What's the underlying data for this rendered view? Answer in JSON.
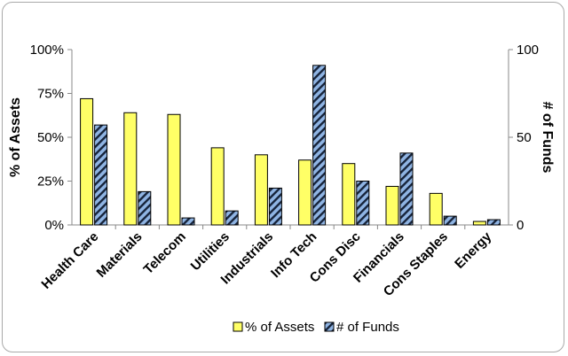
{
  "chart_data": {
    "type": "bar",
    "categories": [
      "Health Care",
      "Materials",
      "Telecom",
      "Utilities",
      "Industrials",
      "Info Tech",
      "Cons Disc",
      "Financials",
      "Cons Staples",
      "Energy"
    ],
    "series": [
      {
        "name": "% of Assets",
        "axis": "left",
        "unit": "%",
        "color": "#ffff66",
        "values": [
          72,
          64,
          63,
          44,
          40,
          37,
          35,
          22,
          18,
          2
        ]
      },
      {
        "name": "# of Funds",
        "axis": "right",
        "color": "#8fb4e3",
        "pattern": "diagonal-hatch",
        "values": [
          57,
          19,
          4,
          8,
          21,
          91,
          25,
          41,
          5,
          3
        ]
      }
    ],
    "ylabel": "% of Assets",
    "y2label": "# of Funds",
    "ylim": [
      0,
      100
    ],
    "y2lim": [
      0,
      100
    ],
    "yticks": [
      "0%",
      "25%",
      "50%",
      "75%",
      "100%"
    ],
    "y2ticks": [
      "0",
      "50",
      "100"
    ],
    "grid": false,
    "legend_position": "bottom"
  }
}
